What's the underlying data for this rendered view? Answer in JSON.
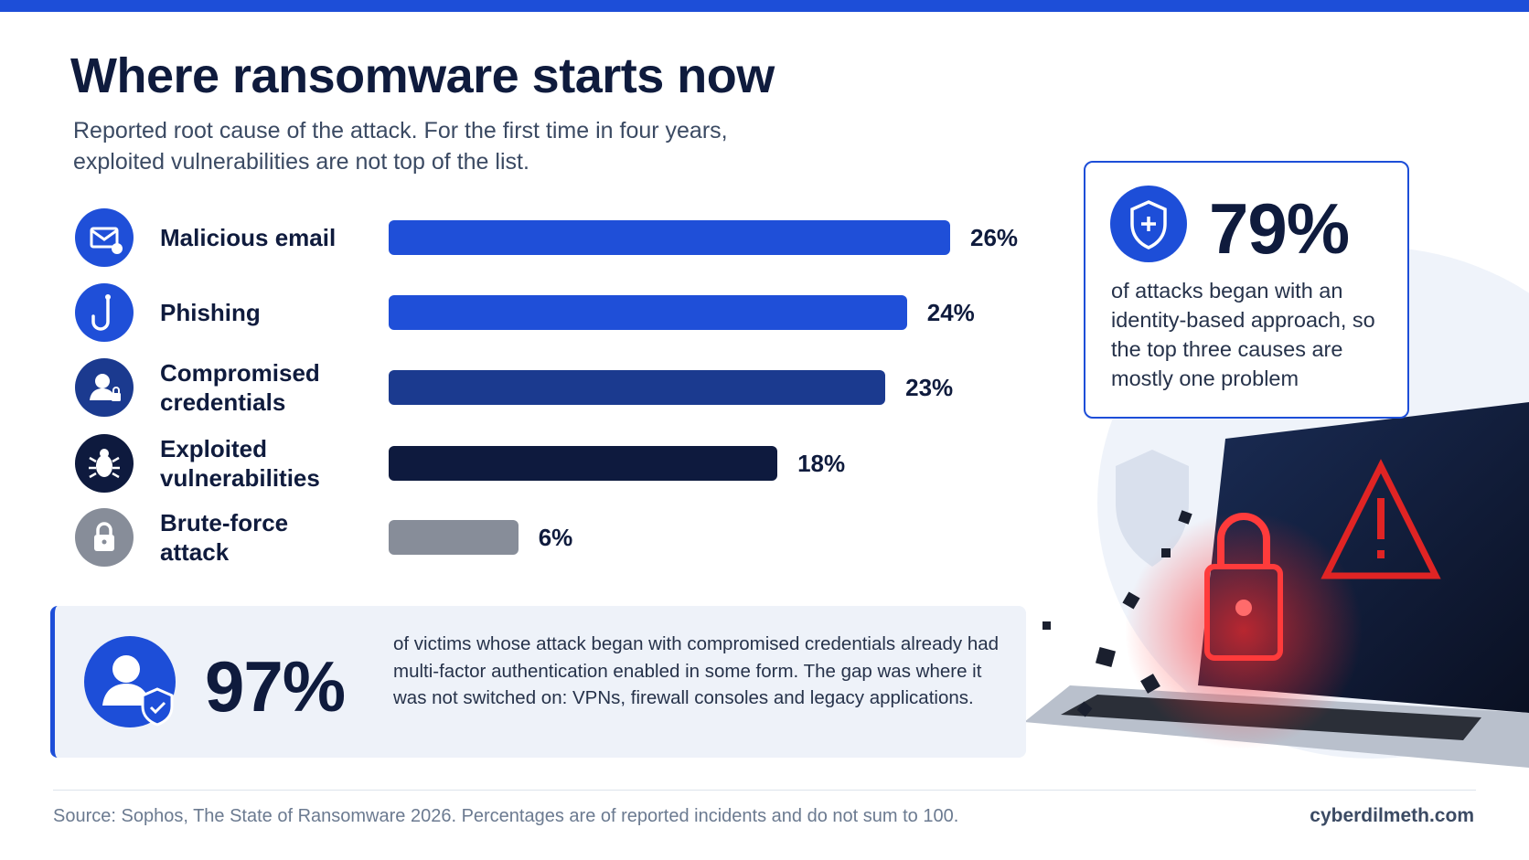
{
  "chart_data": {
    "type": "bar",
    "title": "Where ransomware starts now",
    "subtitle": "Reported root cause of the attack. For the first time in four years, exploited vulnerabilities are not top of the list.",
    "categories": [
      "Malicious email",
      "Phishing",
      "Compromised credentials",
      "Exploited vulnerabilities",
      "Brute-force attack"
    ],
    "values": [
      26,
      24,
      23,
      18,
      6
    ],
    "value_labels": [
      "26%",
      "24%",
      "23%",
      "18%",
      "6%"
    ],
    "colors": [
      "#1f4fd8",
      "#1f4fd8",
      "#1b3a8f",
      "#0e1a3e",
      "#878d99"
    ]
  },
  "callout_right": {
    "figure": "79%",
    "text": "of attacks began with an identity-based approach, so the top three causes are mostly one problem"
  },
  "callout_bottom": {
    "figure": "97%",
    "text": "of victims whose attack began with compromised credentials already had multi-factor authentication enabled in some form. The gap was where it was not switched on: VPNs, firewall consoles and legacy applications."
  },
  "footer": {
    "source": "Source: Sophos, The State of Ransomware 2026. Percentages are of reported incidents and do not sum to 100.",
    "site": "cyberdilmeth.com"
  }
}
